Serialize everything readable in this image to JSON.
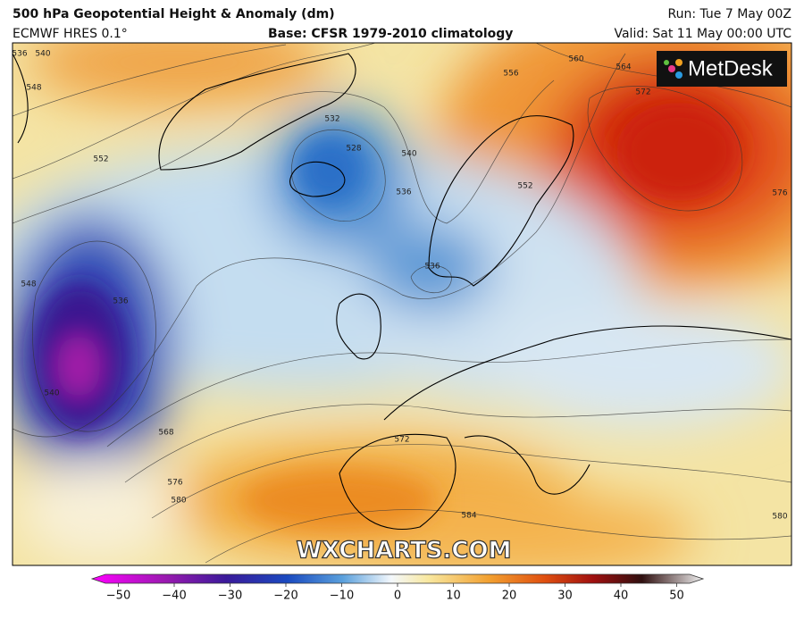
{
  "header": {
    "title": "500 hPa Geopotential Height & Anomaly (dm)",
    "model": "ECMWF HRES 0.1°",
    "base": "Base: CFSR 1979-2010 climatology",
    "run": "Run: Tue 7 May 00Z",
    "valid": "Valid: Sat 11 May 00:00 UTC"
  },
  "logo": "MetDesk",
  "watermark": "WXCHARTS.COM",
  "contour_labels": [
    "536",
    "540",
    "548",
    "552",
    "532",
    "528",
    "540",
    "536",
    "536",
    "548",
    "536",
    "540",
    "556",
    "560",
    "564",
    "572",
    "552",
    "576",
    "568",
    "576",
    "580",
    "572",
    "584",
    "580"
  ],
  "colorbar": {
    "ticks": [
      {
        "value": -50,
        "label": "−50"
      },
      {
        "value": -40,
        "label": "−40"
      },
      {
        "value": -30,
        "label": "−30"
      },
      {
        "value": -20,
        "label": "−20"
      },
      {
        "value": -10,
        "label": "−10"
      },
      0,
      10,
      20,
      30,
      40,
      50
    ]
  }
}
